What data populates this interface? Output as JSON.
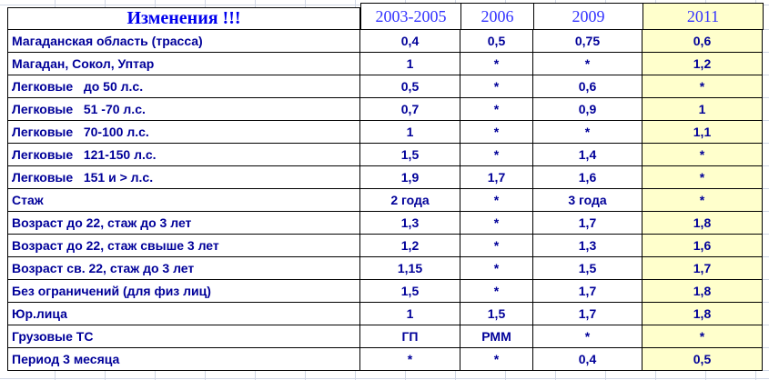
{
  "title": "Изменения !!!",
  "columns": [
    {
      "label": "2003-2005",
      "highlight": false
    },
    {
      "label": "2006",
      "highlight": false
    },
    {
      "label": "2009",
      "highlight": false
    },
    {
      "label": "2011",
      "highlight": true
    }
  ],
  "rows": [
    {
      "label": "Магаданская область (трасса)",
      "values": [
        "0,4",
        "0,5",
        "0,75",
        "0,6"
      ]
    },
    {
      "label": "Магадан, Сокол, Уптар",
      "values": [
        "1",
        "*",
        "*",
        "1,2"
      ]
    },
    {
      "label": "Легковые   до 50 л.с.",
      "values": [
        "0,5",
        "*",
        "0,6",
        "*"
      ]
    },
    {
      "label": "Легковые   51 -70 л.с.",
      "values": [
        "0,7",
        "*",
        "0,9",
        "1"
      ]
    },
    {
      "label": "Легковые   70-100 л.с.",
      "values": [
        "1",
        "*",
        "*",
        "1,1"
      ]
    },
    {
      "label": "Легковые   121-150 л.с.",
      "values": [
        "1,5",
        "*",
        "1,4",
        "*"
      ]
    },
    {
      "label": "Легковые   151 и > л.с.",
      "values": [
        "1,9",
        "1,7",
        "1,6",
        "*"
      ]
    },
    {
      "label": "Стаж",
      "values": [
        "2 года",
        "*",
        "3 года",
        "*"
      ]
    },
    {
      "label": "Возраст до 22, стаж до 3 лет",
      "values": [
        "1,3",
        "*",
        "1,7",
        "1,8"
      ]
    },
    {
      "label": "Возраст до 22, стаж свыше 3 лет",
      "values": [
        "1,2",
        "*",
        "1,3",
        "1,6"
      ]
    },
    {
      "label": "Возраст св. 22, стаж до 3 лет",
      "values": [
        "1,15",
        "*",
        "1,5",
        "1,7"
      ]
    },
    {
      "label": "Без ограничений (для физ лиц)",
      "values": [
        "1,5",
        "*",
        "1,7",
        "1,8"
      ]
    },
    {
      "label": "Юр.лица",
      "values": [
        "1",
        "1,5",
        "1,7",
        "1,8"
      ]
    },
    {
      "label": "Грузовые ТС",
      "values": [
        "ГП",
        "РММ",
        "*",
        "*"
      ]
    },
    {
      "label": "Период 3 месяца",
      "values": [
        "*",
        "*",
        "0,4",
        "0,5"
      ]
    }
  ],
  "colors": {
    "title": "#0000EE",
    "year_header": "#3333FF",
    "cell_text": "#000099",
    "highlight_bg": "#FFFFCC",
    "border": "#000000",
    "gridline": "#D0D7E5"
  }
}
